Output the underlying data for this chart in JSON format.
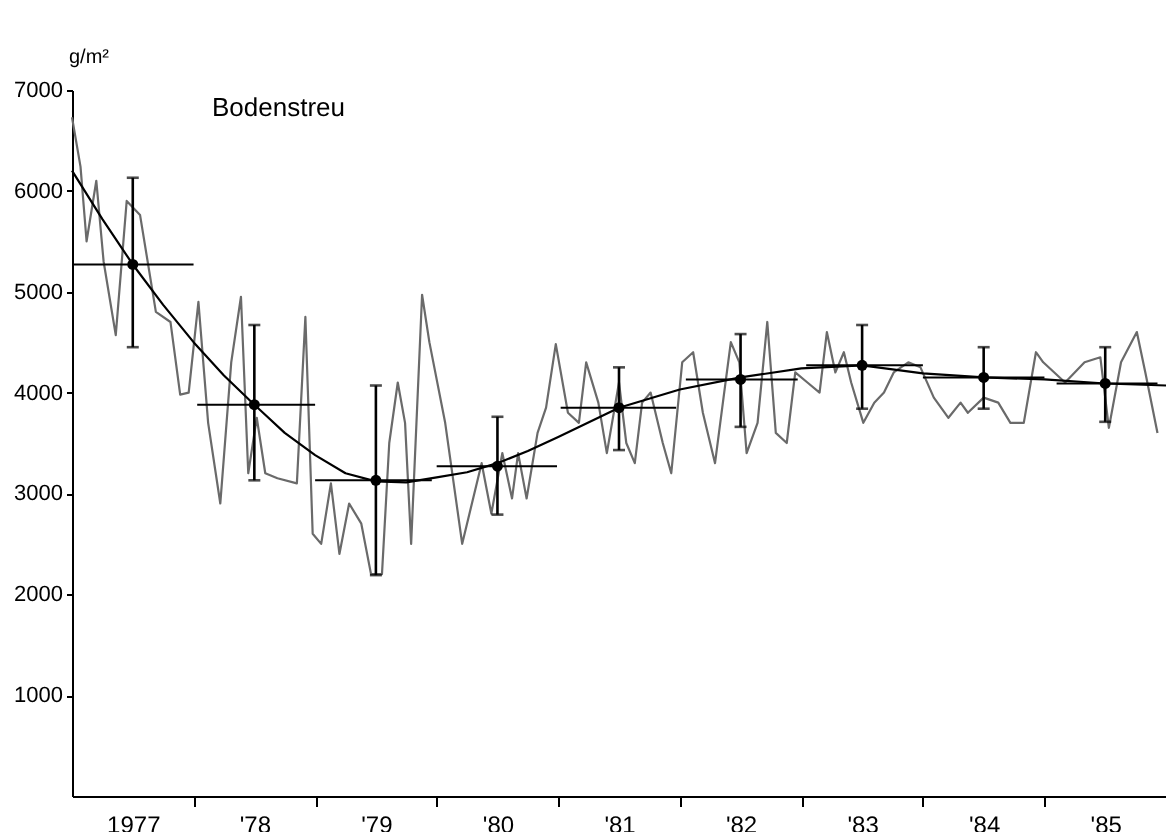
{
  "chart_data": {
    "type": "line",
    "title": "Bodenstreu",
    "ylabel": "g/m²",
    "xlim": [
      1976.5,
      1985.5
    ],
    "ylim": [
      0,
      7000
    ],
    "xticks": [
      {
        "value": 1977,
        "label": "1977"
      },
      {
        "value": 1977.5,
        "label": null
      },
      {
        "value": 1978,
        "label": "'78"
      },
      {
        "value": 1978.5,
        "label": null
      },
      {
        "value": 1979,
        "label": "'79"
      },
      {
        "value": 1979.5,
        "label": null
      },
      {
        "value": 1980,
        "label": "'80"
      },
      {
        "value": 1980.5,
        "label": null
      },
      {
        "value": 1981,
        "label": "'81"
      },
      {
        "value": 1981.5,
        "label": null
      },
      {
        "value": 1982,
        "label": "'82"
      },
      {
        "value": 1982.5,
        "label": null
      },
      {
        "value": 1983,
        "label": "'83"
      },
      {
        "value": 1983.5,
        "label": null
      },
      {
        "value": 1984,
        "label": "'84"
      },
      {
        "value": 1984.5,
        "label": null
      },
      {
        "value": 1985,
        "label": "'85"
      }
    ],
    "yticks": [
      1000,
      2000,
      3000,
      4000,
      5000,
      6000,
      7000
    ],
    "grid": false,
    "series": [
      {
        "type": "line",
        "color": "#6a6a6a",
        "x": [
          1976.5,
          1976.57,
          1976.62,
          1976.7,
          1976.76,
          1976.86,
          1976.95,
          1977.06,
          1977.19,
          1977.31,
          1977.39,
          1977.46,
          1977.54,
          1977.62,
          1977.72,
          1977.81,
          1977.89,
          1977.95,
          1978.02,
          1978.09,
          1978.19,
          1978.35,
          1978.42,
          1978.48,
          1978.55,
          1978.63,
          1978.7,
          1978.78,
          1978.88,
          1978.96,
          1979.05,
          1979.11,
          1979.18,
          1979.24,
          1979.29,
          1979.38,
          1979.44,
          1979.57,
          1979.71,
          1979.87,
          1979.95,
          1980.04,
          1980.12,
          1980.17,
          1980.24,
          1980.33,
          1980.4,
          1980.48,
          1980.58,
          1980.67,
          1980.73,
          1980.83,
          1980.9,
          1981.0,
          1981.06,
          1981.13,
          1981.19,
          1981.26,
          1981.36,
          1981.43,
          1981.52,
          1981.61,
          1981.69,
          1981.79,
          1981.86,
          1981.92,
          1981.99,
          1982.05,
          1982.14,
          1982.22,
          1982.29,
          1982.38,
          1982.45,
          1982.55,
          1982.65,
          1982.71,
          1982.78,
          1982.85,
          1982.91,
          1983.01,
          1983.1,
          1983.18,
          1983.26,
          1983.38,
          1983.48,
          1983.59,
          1983.71,
          1983.81,
          1983.87,
          1984.0,
          1984.12,
          1984.22,
          1984.33,
          1984.43,
          1984.49,
          1984.67,
          1984.83,
          1984.96,
          1985.03,
          1985.13,
          1985.26,
          1985.33,
          1985.43
        ],
        "values": [
          6730,
          6240,
          5500,
          6100,
          5300,
          4570,
          5900,
          5760,
          4800,
          4700,
          3980,
          4000,
          4900,
          3700,
          2900,
          4300,
          4950,
          3200,
          3750,
          3200,
          3150,
          3100,
          4750,
          2600,
          2500,
          3100,
          2400,
          2900,
          2700,
          2200,
          2200,
          3500,
          4100,
          3700,
          2500,
          4970,
          4500,
          3700,
          2500,
          3300,
          2800,
          3400,
          2950,
          3400,
          2950,
          3600,
          3850,
          4480,
          3800,
          3700,
          4300,
          3900,
          3400,
          4100,
          3500,
          3300,
          3900,
          4000,
          3500,
          3200,
          4300,
          4400,
          3800,
          3300,
          3950,
          4500,
          4300,
          3400,
          3700,
          4700,
          3600,
          3500,
          4200,
          4100,
          4000,
          4600,
          4200,
          4400,
          4100,
          3700,
          3900,
          4000,
          4200,
          4300,
          4250,
          3950,
          3750,
          3900,
          3800,
          3950,
          3900,
          3700,
          3700,
          4400,
          4300,
          4100,
          4300,
          4350,
          3650,
          4300,
          4600,
          4200,
          3600
        ]
      },
      {
        "type": "line",
        "color": "#000000",
        "x": [
          1976.5,
          1976.75,
          1977.0,
          1977.25,
          1977.5,
          1977.75,
          1978.0,
          1978.25,
          1978.5,
          1978.75,
          1979.0,
          1979.25,
          1979.5,
          1979.75,
          1980.0,
          1980.25,
          1980.5,
          1981.0,
          1981.5,
          1982.0,
          1982.5,
          1983.0,
          1983.5,
          1984.0,
          1984.5,
          1985.0,
          1985.5
        ],
        "values": [
          6200,
          5720,
          5270,
          4870,
          4500,
          4170,
          3880,
          3600,
          3380,
          3200,
          3120,
          3110,
          3160,
          3210,
          3300,
          3420,
          3560,
          3850,
          4030,
          4150,
          4240,
          4270,
          4190,
          4150,
          4130,
          4090,
          4070
        ]
      },
      {
        "type": "scatter",
        "color": "#000000",
        "marker": "circle",
        "x": [
          1977,
          1978,
          1979,
          1980,
          1981,
          1982,
          1983,
          1984,
          1985
        ],
        "values": [
          5270,
          3880,
          3130,
          3270,
          3850,
          4130,
          4270,
          4150,
          4090
        ],
        "errors": [
          [
            4450,
            6130
          ],
          [
            3130,
            4670
          ],
          [
            2190,
            4070
          ],
          [
            2790,
            3760
          ],
          [
            3430,
            4250
          ],
          [
            3660,
            4580
          ],
          [
            3840,
            4670
          ],
          [
            3840,
            4450
          ],
          [
            3710,
            4450
          ]
        ],
        "xerrors": [
          [
            1976.5,
            1977.5
          ],
          [
            1977.53,
            1978.5
          ],
          [
            1978.5,
            1979.46
          ],
          [
            1979.5,
            1980.49
          ],
          [
            1980.52,
            1981.47
          ],
          [
            1981.55,
            1982.47
          ],
          [
            1982.54,
            1983.5
          ],
          [
            1983.5,
            1984.5
          ],
          [
            1984.6,
            1985.43
          ]
        ]
      }
    ]
  }
}
